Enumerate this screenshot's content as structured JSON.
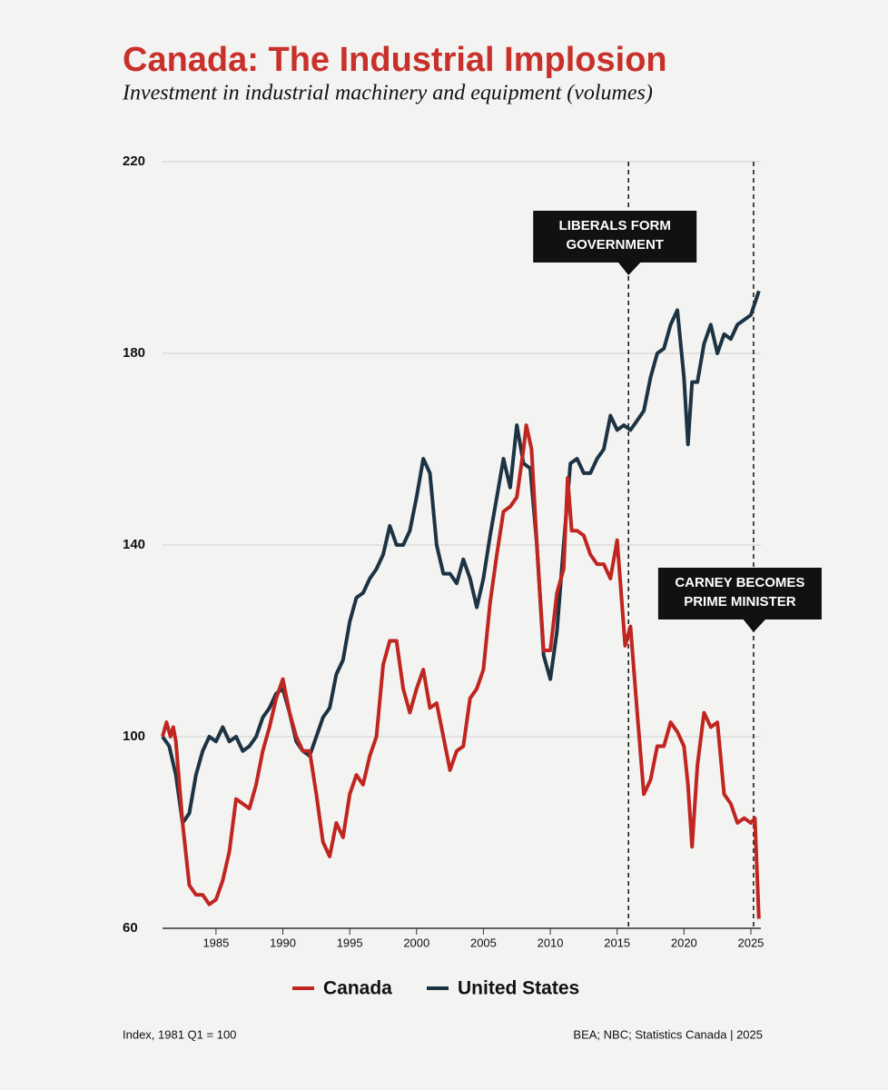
{
  "chart_data": {
    "type": "line",
    "title": "Canada: The Industrial Implosion",
    "subtitle": "Investment in industrial machinery and equipment (volumes)",
    "note": "Index, 1981 Q1 = 100",
    "source": "BEA; NBC; Statistics Canada | 2025",
    "xlim": [
      1981,
      2025.75
    ],
    "xticks": [
      1985,
      1990,
      1995,
      2000,
      2005,
      2010,
      2015,
      2020,
      2025
    ],
    "ylim": [
      60,
      220
    ],
    "yticks": [
      60,
      100,
      140,
      180,
      220
    ],
    "grid": true,
    "legend": "bottom",
    "annotations": [
      {
        "text": [
          "LIBERALS FORM",
          "GOVERNMENT"
        ],
        "x": 2015.85
      },
      {
        "text": [
          "CARNEY BECOMES",
          "PRIME MINISTER"
        ],
        "x": 2025.2
      }
    ],
    "series": [
      {
        "name": "Canada",
        "color": "#c0251f",
        "x": [
          1981,
          1981.3,
          1981.6,
          1981.8,
          1982,
          1982.5,
          1983,
          1983.5,
          1984,
          1984.5,
          1985,
          1985.5,
          1986,
          1986.5,
          1987,
          1987.5,
          1988,
          1988.5,
          1989,
          1989.5,
          1990,
          1990.5,
          1991,
          1991.5,
          1992,
          1992.5,
          1993,
          1993.5,
          1994,
          1994.5,
          1995,
          1995.5,
          1996,
          1996.5,
          1997,
          1997.5,
          1998,
          1998.5,
          1999,
          1999.5,
          2000,
          2000.5,
          2001,
          2001.5,
          2002,
          2002.5,
          2003,
          2003.5,
          2004,
          2004.5,
          2005,
          2005.5,
          2006,
          2006.5,
          2007,
          2007.5,
          2008,
          2008.2,
          2008.6,
          2009,
          2009.5,
          2010,
          2010.5,
          2011,
          2011.3,
          2011.6,
          2012,
          2012.5,
          2013,
          2013.5,
          2014,
          2014.5,
          2015,
          2015.3,
          2015.6,
          2016,
          2016.5,
          2017,
          2017.5,
          2018,
          2018.5,
          2019,
          2019.5,
          2020,
          2020.3,
          2020.6,
          2021,
          2021.5,
          2022,
          2022.5,
          2023,
          2023.5,
          2024,
          2024.5,
          2025,
          2025.3,
          2025.6
        ],
        "values": [
          100,
          103,
          100,
          102,
          99,
          82,
          69,
          67,
          67,
          65,
          66,
          70,
          76,
          87,
          86,
          85,
          90,
          97,
          102,
          108,
          112,
          105,
          100,
          97,
          97,
          88,
          78,
          75,
          82,
          79,
          88,
          92,
          90,
          96,
          100,
          115,
          120,
          120,
          110,
          105,
          110,
          114,
          106,
          107,
          100,
          93,
          97,
          98,
          108,
          110,
          114,
          128,
          138,
          147,
          148,
          150,
          160,
          165,
          160,
          140,
          118,
          118,
          130,
          135,
          154,
          143,
          143,
          142,
          138,
          136,
          136,
          133,
          141,
          130,
          119,
          123,
          105,
          88,
          91,
          98,
          98,
          103,
          101,
          98,
          90,
          77,
          94,
          105,
          102,
          103,
          88,
          86,
          82,
          83,
          82,
          83,
          62
        ]
      },
      {
        "name": "United States",
        "color": "#1c3344",
        "x": [
          1981,
          1981.5,
          1982,
          1982.5,
          1983,
          1983.5,
          1984,
          1984.5,
          1985,
          1985.5,
          1986,
          1986.5,
          1987,
          1987.5,
          1988,
          1988.5,
          1989,
          1989.5,
          1990,
          1990.5,
          1991,
          1991.5,
          1992,
          1992.5,
          1993,
          1993.5,
          1994,
          1994.5,
          1995,
          1995.5,
          1996,
          1996.5,
          1997,
          1997.5,
          1998,
          1998.5,
          1999,
          1999.5,
          2000,
          2000.5,
          2001,
          2001.5,
          2002,
          2002.5,
          2003,
          2003.5,
          2004,
          2004.5,
          2005,
          2005.5,
          2006,
          2006.5,
          2007,
          2007.5,
          2008,
          2008.5,
          2009,
          2009.5,
          2010,
          2010.5,
          2011,
          2011.5,
          2012,
          2012.5,
          2013,
          2013.5,
          2014,
          2014.5,
          2015,
          2015.5,
          2016,
          2016.5,
          2017,
          2017.5,
          2018,
          2018.5,
          2019,
          2019.5,
          2020,
          2020.3,
          2020.6,
          2021,
          2021.5,
          2022,
          2022.5,
          2023,
          2023.5,
          2024,
          2024.5,
          2025,
          2025.6
        ],
        "values": [
          100,
          98,
          92,
          82,
          84,
          92,
          97,
          100,
          99,
          102,
          99,
          100,
          97,
          98,
          100,
          104,
          106,
          109,
          110,
          105,
          99,
          97,
          96,
          100,
          104,
          106,
          113,
          116,
          124,
          129,
          130,
          133,
          135,
          138,
          144,
          140,
          140,
          143,
          150,
          158,
          155,
          140,
          134,
          134,
          132,
          137,
          133,
          127,
          133,
          142,
          150,
          158,
          152,
          165,
          157,
          156,
          140,
          117,
          112,
          122,
          140,
          157,
          158,
          155,
          155,
          158,
          160,
          167,
          164,
          165,
          164,
          166,
          168,
          175,
          180,
          181,
          186,
          189,
          175,
          161,
          174,
          174,
          182,
          186,
          180,
          184,
          183,
          186,
          187,
          188,
          193
        ]
      }
    ]
  }
}
